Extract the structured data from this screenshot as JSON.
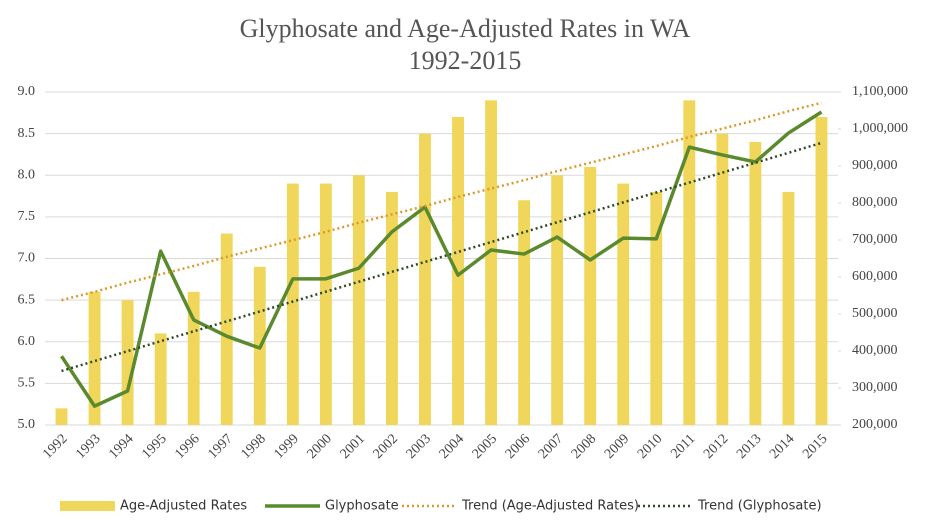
{
  "chart_data": {
    "type": "combo",
    "title": "Glyphosate and Age-Adjusted Rates in WA",
    "subtitle": "1992-2015",
    "categories": [
      "1992",
      "1993",
      "1994",
      "1995",
      "1996",
      "1997",
      "1998",
      "1999",
      "2000",
      "2001",
      "2002",
      "2003",
      "2004",
      "2005",
      "2006",
      "2007",
      "2008",
      "2009",
      "2010",
      "2011",
      "2012",
      "2013",
      "2014",
      "2015"
    ],
    "series": [
      {
        "name": "Age-Adjusted Rates",
        "type": "bar",
        "color": "#f0d75c",
        "axis": "y",
        "values": [
          5.2,
          6.6,
          6.5,
          6.1,
          6.6,
          7.3,
          6.9,
          7.9,
          7.9,
          8.0,
          7.8,
          8.5,
          8.7,
          8.9,
          7.7,
          8.0,
          8.1,
          7.9,
          7.8,
          8.9,
          8.5,
          8.4,
          7.8,
          8.7
        ]
      },
      {
        "name": "Glyphosate",
        "type": "line",
        "dash": false,
        "color": "#5b8a2e",
        "axis": "y2",
        "values": [
          386000,
          251000,
          292000,
          670000,
          484000,
          440000,
          408000,
          595000,
          595000,
          624000,
          722000,
          789000,
          605000,
          673000,
          662000,
          708000,
          646000,
          705000,
          703000,
          951000,
          930000,
          911000,
          989000,
          1046000
        ]
      },
      {
        "name": "Trend (Age-Adjusted Rates)",
        "type": "line",
        "dash": true,
        "color": "#d99a2b",
        "axis": "y",
        "values": [
          6.5,
          6.6,
          6.71,
          6.81,
          6.91,
          7.02,
          7.12,
          7.22,
          7.32,
          7.43,
          7.53,
          7.63,
          7.74,
          7.84,
          7.94,
          8.05,
          8.15,
          8.25,
          8.35,
          8.46,
          8.56,
          8.66,
          8.77,
          8.87
        ]
      },
      {
        "name": "Trend (Glyphosate)",
        "type": "line",
        "dash": true,
        "color": "#2f4a22",
        "axis": "y2",
        "values": [
          346000,
          372800,
          399600,
          426400,
          453200,
          480000,
          506800,
          533600,
          560400,
          587200,
          614000,
          640800,
          667600,
          694400,
          721200,
          748000,
          774800,
          801600,
          828400,
          855200,
          882000,
          908800,
          935600,
          962400
        ]
      }
    ],
    "ylim": [
      5,
      9
    ],
    "yticks": [
      {
        "value": 5,
        "label": "5.0"
      },
      5.5,
      {
        "value": 6,
        "label": "6.0"
      },
      6.5,
      {
        "value": 7,
        "label": "7.0"
      },
      7.5,
      {
        "value": 8,
        "label": "8.0"
      },
      8.5,
      {
        "value": 9,
        "label": "9.0"
      }
    ],
    "y2lim": [
      200000,
      1100000
    ],
    "y2ticks": [
      {
        "value": 200000,
        "label": "200,000"
      },
      {
        "value": 300000,
        "label": "300,000"
      },
      {
        "value": 400000,
        "label": "400,000"
      },
      {
        "value": 500000,
        "label": "500,000"
      },
      {
        "value": 600000,
        "label": "600,000"
      },
      {
        "value": 700000,
        "label": "700,000"
      },
      {
        "value": 800000,
        "label": "800,000"
      },
      {
        "value": 900000,
        "label": "900,000"
      },
      {
        "value": 1000000,
        "label": "1,000,000"
      },
      {
        "value": 1100000,
        "label": "1,100,000"
      }
    ],
    "grid": true,
    "legend": "bottom"
  }
}
